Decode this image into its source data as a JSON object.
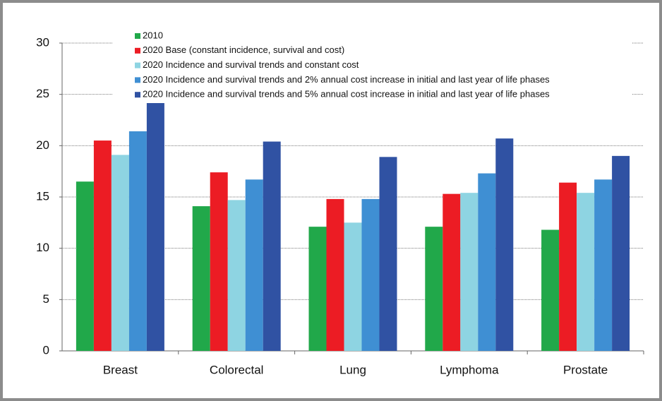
{
  "chart_data": {
    "type": "bar",
    "categories": [
      "Breast",
      "Colorectal",
      "Lung",
      "Lymphoma",
      "Prostate"
    ],
    "series": [
      {
        "name": "2010",
        "color": "#21a84a",
        "values": [
          16.5,
          14.1,
          12.1,
          12.1,
          11.8
        ]
      },
      {
        "name": "2020 Base (constant incidence, survival and cost)",
        "color": "#ec1c24",
        "values": [
          20.5,
          17.4,
          14.8,
          15.3,
          16.4
        ]
      },
      {
        "name": "2020 Incidence and survival trends and constant cost",
        "color": "#8ed4e2",
        "values": [
          19.1,
          14.7,
          12.5,
          15.4,
          15.4
        ]
      },
      {
        "name": "2020 Incidence and survival trends and 2% annual cost increase in initial and last year of life phases",
        "color": "#3f8fd3",
        "values": [
          21.4,
          16.7,
          14.8,
          17.3,
          16.7
        ]
      },
      {
        "name": "2020 Incidence and survival trends and 5% annual cost increase in initial and last year of life phases",
        "color": "#3052a3",
        "values": [
          24.2,
          20.4,
          18.9,
          20.7,
          19.0
        ]
      }
    ],
    "ylim": [
      0,
      30
    ],
    "yticks": [
      0,
      5,
      10,
      15,
      20,
      25,
      30
    ],
    "grid": true
  }
}
